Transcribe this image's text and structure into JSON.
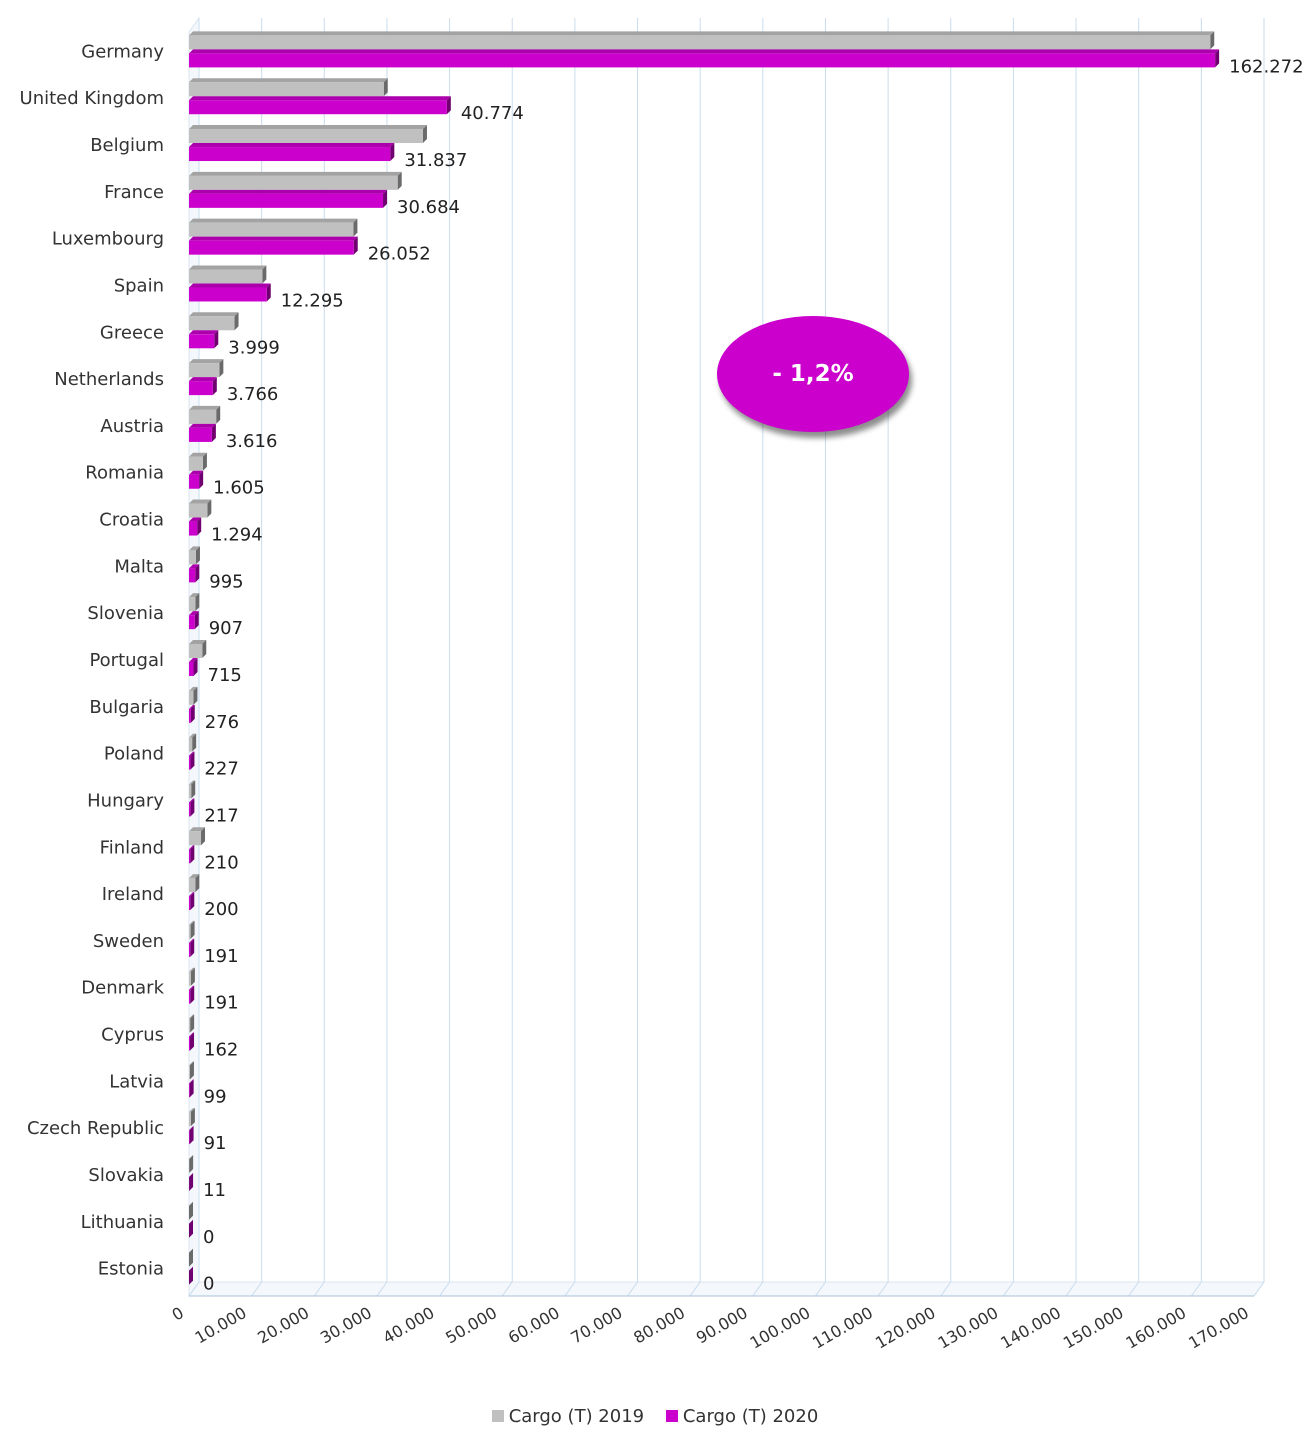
{
  "chart_data": {
    "type": "bar",
    "orientation": "horizontal",
    "categories": [
      "Germany",
      "United Kingdom",
      "Belgium",
      "France",
      "Luxembourg",
      "Spain",
      "Greece",
      "Netherlands",
      "Austria",
      "Romania",
      "Croatia",
      "Malta",
      "Slovenia",
      "Portugal",
      "Bulgaria",
      "Poland",
      "Hungary",
      "Finland",
      "Ireland",
      "Sweden",
      "Denmark",
      "Cyprus",
      "Latvia",
      "Czech Republic",
      "Slovakia",
      "Lithuania",
      "Estonia"
    ],
    "series": [
      {
        "name": "Cargo (T) 2019",
        "color": "#c0c0c0",
        "values": [
          161500,
          30800,
          37000,
          33000,
          26000,
          11600,
          7200,
          4800,
          4300,
          2200,
          2900,
          1100,
          1000,
          2100,
          700,
          500,
          350,
          1900,
          1000,
          250,
          300,
          180,
          150,
          300,
          20,
          0,
          0
        ]
      },
      {
        "name": "Cargo (T) 2020",
        "color": "#cc00cc",
        "values": [
          162272,
          40774,
          31837,
          30684,
          26052,
          12295,
          3999,
          3766,
          3616,
          1605,
          1294,
          995,
          907,
          715,
          276,
          227,
          217,
          210,
          200,
          191,
          191,
          162,
          99,
          91,
          11,
          0,
          0
        ]
      }
    ],
    "data_labels": [
      "162.272",
      "40.774",
      "31.837",
      "30.684",
      "26.052",
      "12.295",
      "3.999",
      "3.766",
      "3.616",
      "1.605",
      "1.294",
      "995",
      "907",
      "715",
      "276",
      "227",
      "217",
      "210",
      "200",
      "191",
      "191",
      "162",
      "99",
      "91",
      "11",
      "0",
      "0"
    ],
    "x_ticks": [
      "0",
      "10.000",
      "20.000",
      "30.000",
      "40.000",
      "50.000",
      "60.000",
      "70.000",
      "80.000",
      "90.000",
      "100.000",
      "110.000",
      "120.000",
      "130.000",
      "140.000",
      "150.000",
      "160.000",
      "170.000"
    ],
    "xlim": [
      0,
      170000
    ],
    "grid": true,
    "legend_position": "bottom"
  },
  "annotation": {
    "text": "- 1,2%",
    "color": "#cc00cc"
  }
}
